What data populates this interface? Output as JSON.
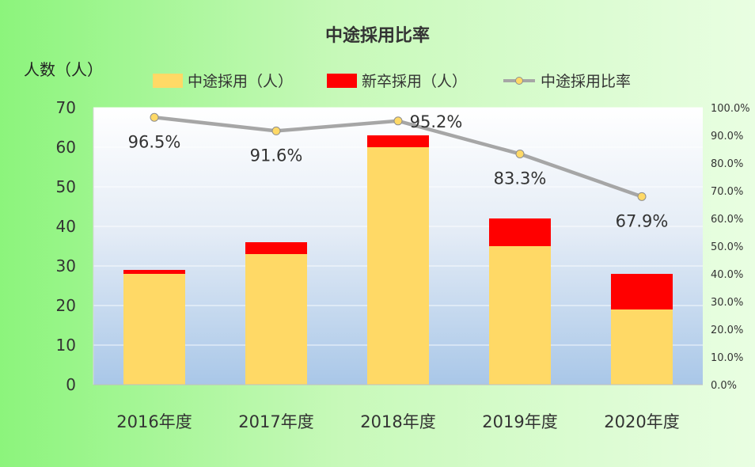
{
  "chart_data": {
    "type": "bar",
    "title": "中途採用比率",
    "ylabel": "人数（人）",
    "categories": [
      "2016年度",
      "2017年度",
      "2018年度",
      "2019年度",
      "2020年度"
    ],
    "series": [
      {
        "name": "中途採用（人）",
        "type": "bar",
        "stack": "total",
        "color": "#FFD966",
        "values": [
          28,
          33,
          60,
          35,
          19
        ]
      },
      {
        "name": "新卒採用（人）",
        "type": "bar",
        "stack": "total",
        "color": "#FF0000",
        "values": [
          1,
          3,
          3,
          7,
          9
        ]
      },
      {
        "name": "中途採用比率",
        "type": "line",
        "axis": "right",
        "color": "#A6A6A6",
        "marker_color": "#FFD966",
        "values": [
          96.5,
          91.6,
          95.2,
          83.3,
          67.9
        ]
      }
    ],
    "data_labels": [
      "96.5%",
      "91.6%",
      "95.2%",
      "83.3%",
      "67.9%"
    ],
    "ylim": [
      0,
      70
    ],
    "yticks": [
      "0",
      "10",
      "20",
      "30",
      "40",
      "50",
      "60",
      "70"
    ],
    "y2lim": [
      0,
      100
    ],
    "y2ticks": [
      "0.0%",
      "10.0%",
      "20.0%",
      "30.0%",
      "40.0%",
      "50.0%",
      "60.0%",
      "70.0%",
      "80.0%",
      "90.0%",
      "100.0%"
    ],
    "legend_position": "top",
    "grid": true
  }
}
